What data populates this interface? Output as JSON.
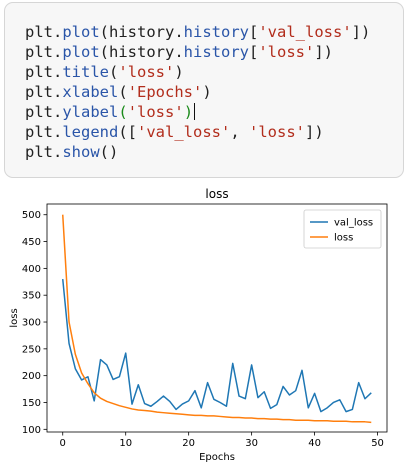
{
  "code_cell": {
    "lines": [
      [
        {
          "t": "plt",
          "c": "tok-name"
        },
        {
          "t": ".",
          "c": "tok-punc"
        },
        {
          "t": "plot",
          "c": "tok-attr"
        },
        {
          "t": "(history",
          "c": "tok-name"
        },
        {
          "t": ".",
          "c": "tok-punc"
        },
        {
          "t": "history",
          "c": "tok-attr"
        },
        {
          "t": "[",
          "c": "tok-punc"
        },
        {
          "t": "'val_loss'",
          "c": "tok-str"
        },
        {
          "t": "])",
          "c": "tok-punc"
        }
      ],
      [
        {
          "t": "plt",
          "c": "tok-name"
        },
        {
          "t": ".",
          "c": "tok-punc"
        },
        {
          "t": "plot",
          "c": "tok-attr"
        },
        {
          "t": "(history",
          "c": "tok-name"
        },
        {
          "t": ".",
          "c": "tok-punc"
        },
        {
          "t": "history",
          "c": "tok-attr"
        },
        {
          "t": "[",
          "c": "tok-punc"
        },
        {
          "t": "'loss'",
          "c": "tok-str"
        },
        {
          "t": "])",
          "c": "tok-punc"
        }
      ],
      [
        {
          "t": "plt",
          "c": "tok-name"
        },
        {
          "t": ".",
          "c": "tok-punc"
        },
        {
          "t": "title",
          "c": "tok-attr"
        },
        {
          "t": "(",
          "c": "tok-punc"
        },
        {
          "t": "'loss'",
          "c": "tok-str"
        },
        {
          "t": ")",
          "c": "tok-punc"
        }
      ],
      [
        {
          "t": "plt",
          "c": "tok-name"
        },
        {
          "t": ".",
          "c": "tok-punc"
        },
        {
          "t": "xlabel",
          "c": "tok-attr"
        },
        {
          "t": "(",
          "c": "tok-punc"
        },
        {
          "t": "'Epochs'",
          "c": "tok-str"
        },
        {
          "t": ")",
          "c": "tok-punc"
        }
      ],
      [
        {
          "t": "plt",
          "c": "tok-name"
        },
        {
          "t": ".",
          "c": "tok-punc"
        },
        {
          "t": "ylabel",
          "c": "tok-attr"
        },
        {
          "t": "(",
          "c": "brace-hl"
        },
        {
          "t": "'loss'",
          "c": "tok-str"
        },
        {
          "t": ")",
          "c": "brace-hl"
        },
        {
          "t": "",
          "c": "cursor"
        }
      ],
      [
        {
          "t": "plt",
          "c": "tok-name"
        },
        {
          "t": ".",
          "c": "tok-punc"
        },
        {
          "t": "legend",
          "c": "tok-attr"
        },
        {
          "t": "([",
          "c": "tok-punc"
        },
        {
          "t": "'val_loss'",
          "c": "tok-str"
        },
        {
          "t": ", ",
          "c": "tok-punc"
        },
        {
          "t": "'loss'",
          "c": "tok-str"
        },
        {
          "t": "])",
          "c": "tok-punc"
        }
      ],
      [
        {
          "t": "plt",
          "c": "tok-name"
        },
        {
          "t": ".",
          "c": "tok-punc"
        },
        {
          "t": "show",
          "c": "tok-attr"
        },
        {
          "t": "()",
          "c": "tok-punc"
        }
      ]
    ]
  },
  "chart_data": {
    "type": "line",
    "title": "loss",
    "xlabel": "Epochs",
    "ylabel": "loss",
    "xlim": [
      -2.5,
      51.5
    ],
    "ylim": [
      95,
      520
    ],
    "xticks": [
      0,
      10,
      20,
      30,
      40,
      50
    ],
    "yticks": [
      100,
      150,
      200,
      250,
      300,
      350,
      400,
      450,
      500
    ],
    "grid": false,
    "legend_position": "top-right",
    "series": [
      {
        "name": "val_loss",
        "color": "#1f77b4",
        "x": [
          0,
          1,
          2,
          3,
          4,
          5,
          6,
          7,
          8,
          9,
          10,
          11,
          12,
          13,
          14,
          15,
          16,
          17,
          18,
          19,
          20,
          21,
          22,
          23,
          24,
          25,
          26,
          27,
          28,
          29,
          30,
          31,
          32,
          33,
          34,
          35,
          36,
          37,
          38,
          39,
          40,
          41,
          42,
          43,
          44,
          45,
          46,
          47,
          48,
          49
        ],
        "values": [
          380,
          260,
          213,
          192,
          198,
          153,
          230,
          220,
          193,
          198,
          242,
          147,
          183,
          148,
          143,
          152,
          162,
          152,
          137,
          147,
          153,
          172,
          140,
          187,
          156,
          150,
          143,
          223,
          162,
          157,
          220,
          159,
          170,
          139,
          146,
          180,
          164,
          172,
          210,
          140,
          167,
          133,
          140,
          150,
          155,
          133,
          137,
          187,
          157,
          168
        ]
      },
      {
        "name": "loss",
        "color": "#ff7f0e",
        "x": [
          0,
          1,
          2,
          3,
          4,
          5,
          6,
          7,
          8,
          9,
          10,
          11,
          12,
          13,
          14,
          15,
          16,
          17,
          18,
          19,
          20,
          21,
          22,
          23,
          24,
          25,
          26,
          27,
          28,
          29,
          30,
          31,
          32,
          33,
          34,
          35,
          36,
          37,
          38,
          39,
          40,
          41,
          42,
          43,
          44,
          45,
          46,
          47,
          48,
          49
        ],
        "values": [
          500,
          300,
          240,
          205,
          185,
          168,
          158,
          152,
          148,
          144,
          141,
          138,
          136,
          135,
          134,
          132,
          131,
          130,
          129,
          128,
          127,
          126,
          126,
          125,
          125,
          124,
          123,
          122,
          122,
          121,
          121,
          120,
          120,
          119,
          119,
          118,
          118,
          117,
          117,
          117,
          116,
          116,
          116,
          115,
          115,
          115,
          114,
          114,
          114,
          113
        ]
      }
    ]
  }
}
